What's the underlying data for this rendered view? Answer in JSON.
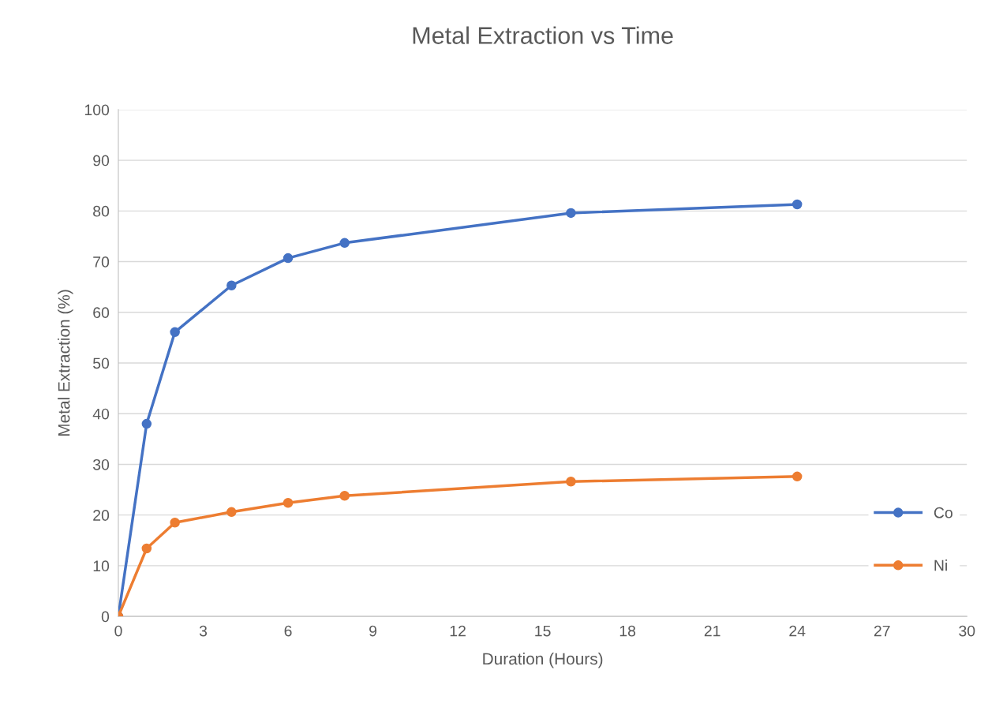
{
  "chart_data": {
    "type": "line",
    "title": "Metal Extraction vs Time",
    "xlabel": "Duration (Hours)",
    "ylabel": "Metal Extraction (%)",
    "x": [
      0,
      1,
      2,
      4,
      6,
      8,
      16,
      24
    ],
    "series": [
      {
        "name": "Co",
        "color": "#4472c4",
        "values": [
          0,
          38.0,
          56.1,
          65.3,
          70.7,
          73.7,
          79.6,
          81.3
        ]
      },
      {
        "name": "Ni",
        "color": "#ed7d31",
        "values": [
          0,
          13.4,
          18.5,
          20.6,
          22.4,
          23.8,
          26.6,
          27.6
        ]
      }
    ],
    "xlim": [
      0,
      30
    ],
    "xticks": [
      0,
      3,
      6,
      9,
      12,
      15,
      18,
      21,
      24,
      27,
      30
    ],
    "ylim": [
      0,
      100
    ],
    "yticks": [
      0,
      10,
      20,
      30,
      40,
      50,
      60,
      70,
      80,
      90,
      100
    ],
    "grid": "y",
    "legend": "right",
    "marker": "circle",
    "line_style": "solid"
  }
}
